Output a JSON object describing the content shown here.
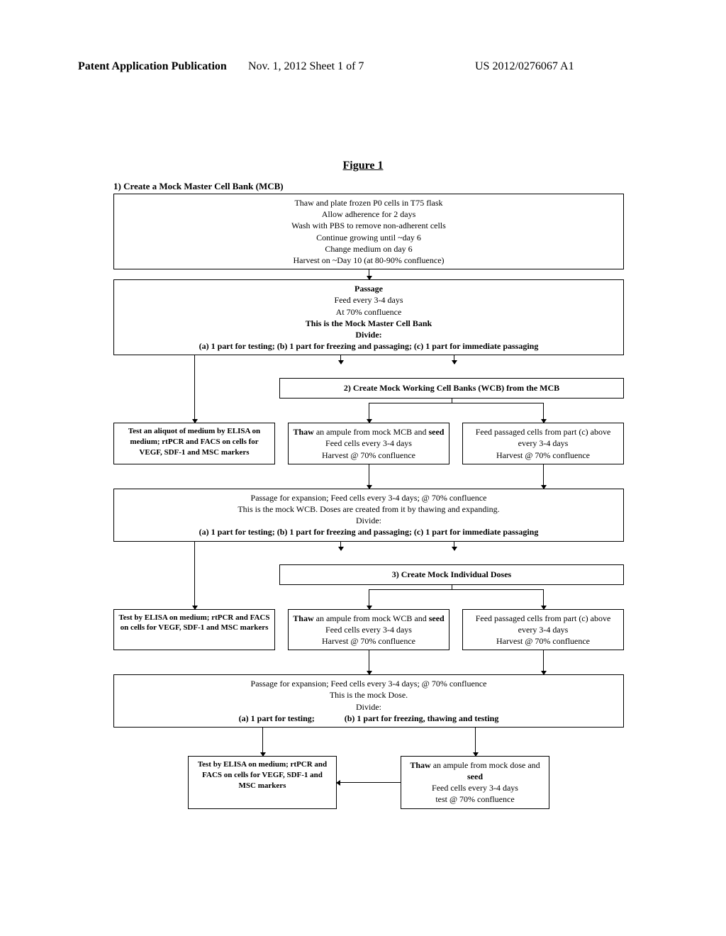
{
  "header": {
    "left": "Patent Application Publication",
    "mid": "Nov. 1, 2012   Sheet 1 of 7",
    "right": "US 2012/0276067 A1"
  },
  "figure_title": "Figure 1",
  "colors": {
    "border": "#000000",
    "bg": "#ffffff",
    "text": "#000000"
  },
  "s1": {
    "head": "1) Create a Mock Master Cell Bank (MCB)",
    "box1": {
      "l1": "Thaw and plate frozen P0 cells in T75 flask",
      "l2": "Allow adherence for 2 days",
      "l3": "Wash with PBS to remove non-adherent cells",
      "l4": "Continue growing until ~day 6",
      "l5": "Change medium on day 6",
      "l6": "Harvest on ~Day 10 (at 80-90% confluence)"
    },
    "box2": {
      "l1": "Passage",
      "l2": "Feed every 3-4 days",
      "l3": "At 70% confluence",
      "l4": "This is the Mock Master Cell Bank",
      "l5": "Divide:",
      "l6": "(a) 1 part for testing;  (b) 1 part for freezing and passaging;  (c) 1 part for immediate passaging"
    }
  },
  "test1": "Test an aliquot of medium by ELISA on medium; rtPCR and FACS on cells for VEGF, SDF-1 and MSC markers",
  "s2": {
    "head": "2) Create Mock Working Cell Banks (WCB) from the MCB",
    "mid1": "Thaw an ampule from mock MCB and seed\nFeed cells every 3-4 days\nHarvest @ 70% confluence",
    "right1": "Feed passaged cells from part (c) above every 3-4 days\nHarvest @ 70% confluence",
    "full": {
      "l1": "Passage for expansion; Feed cells every 3-4 days; @ 70% confluence",
      "l2": "This is the mock WCB. Doses are created from it by thawing and expanding.",
      "l3": "Divide:",
      "l4": "(a) 1 part for testing;  (b) 1 part for freezing and passaging;  (c) 1 part for immediate passaging"
    }
  },
  "test2": "Test by ELISA on medium; rtPCR and FACS on cells for VEGF, SDF-1 and MSC markers",
  "s3": {
    "head": "3) Create Mock Individual Doses",
    "mid1": "Thaw an ampule from mock WCB and seed\nFeed cells every 3-4 days\nHarvest @ 70% confluence",
    "right1": "Feed passaged cells from part (c) above every 3-4 days\nHarvest @ 70% confluence",
    "full": {
      "l1": "Passage for expansion; Feed cells every 3-4 days; @ 70% confluence",
      "l2": "This is the mock Dose.",
      "l3": "Divide:",
      "l4a": "(a) 1 part for testing;",
      "l4b": "(b) 1 part for freezing, thawing and testing"
    }
  },
  "test3": "Test by ELISA on medium; rtPCR and FACS on cells for VEGF, SDF-1 and MSC markers",
  "thawfinal": "Thaw an ampule from mock dose and seed\nFeed cells every 3-4 days\ntest @ 70% confluence"
}
